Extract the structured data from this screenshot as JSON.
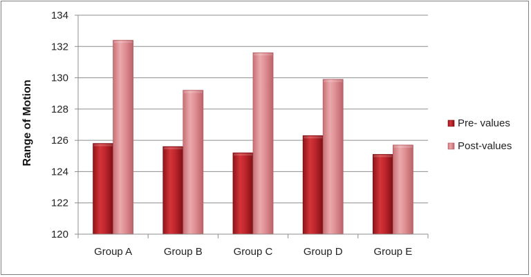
{
  "chart_data": {
    "type": "bar",
    "title": "",
    "xlabel": "",
    "ylabel": "Range of Motion",
    "categories": [
      "Group A",
      "Group B",
      "Group C",
      "Group D",
      "Group E"
    ],
    "series": [
      {
        "name": "Pre- values",
        "values": [
          125.8,
          125.6,
          125.2,
          126.3,
          125.1
        ],
        "color": "#c0262c"
      },
      {
        "name": "Post-values",
        "values": [
          132.4,
          129.2,
          131.6,
          129.9,
          125.7
        ],
        "color": "#e08f93"
      }
    ],
    "ylim": [
      120,
      134
    ],
    "yticks": [
      120,
      122,
      124,
      126,
      128,
      130,
      132,
      134
    ],
    "grid": true,
    "legend": "right"
  }
}
